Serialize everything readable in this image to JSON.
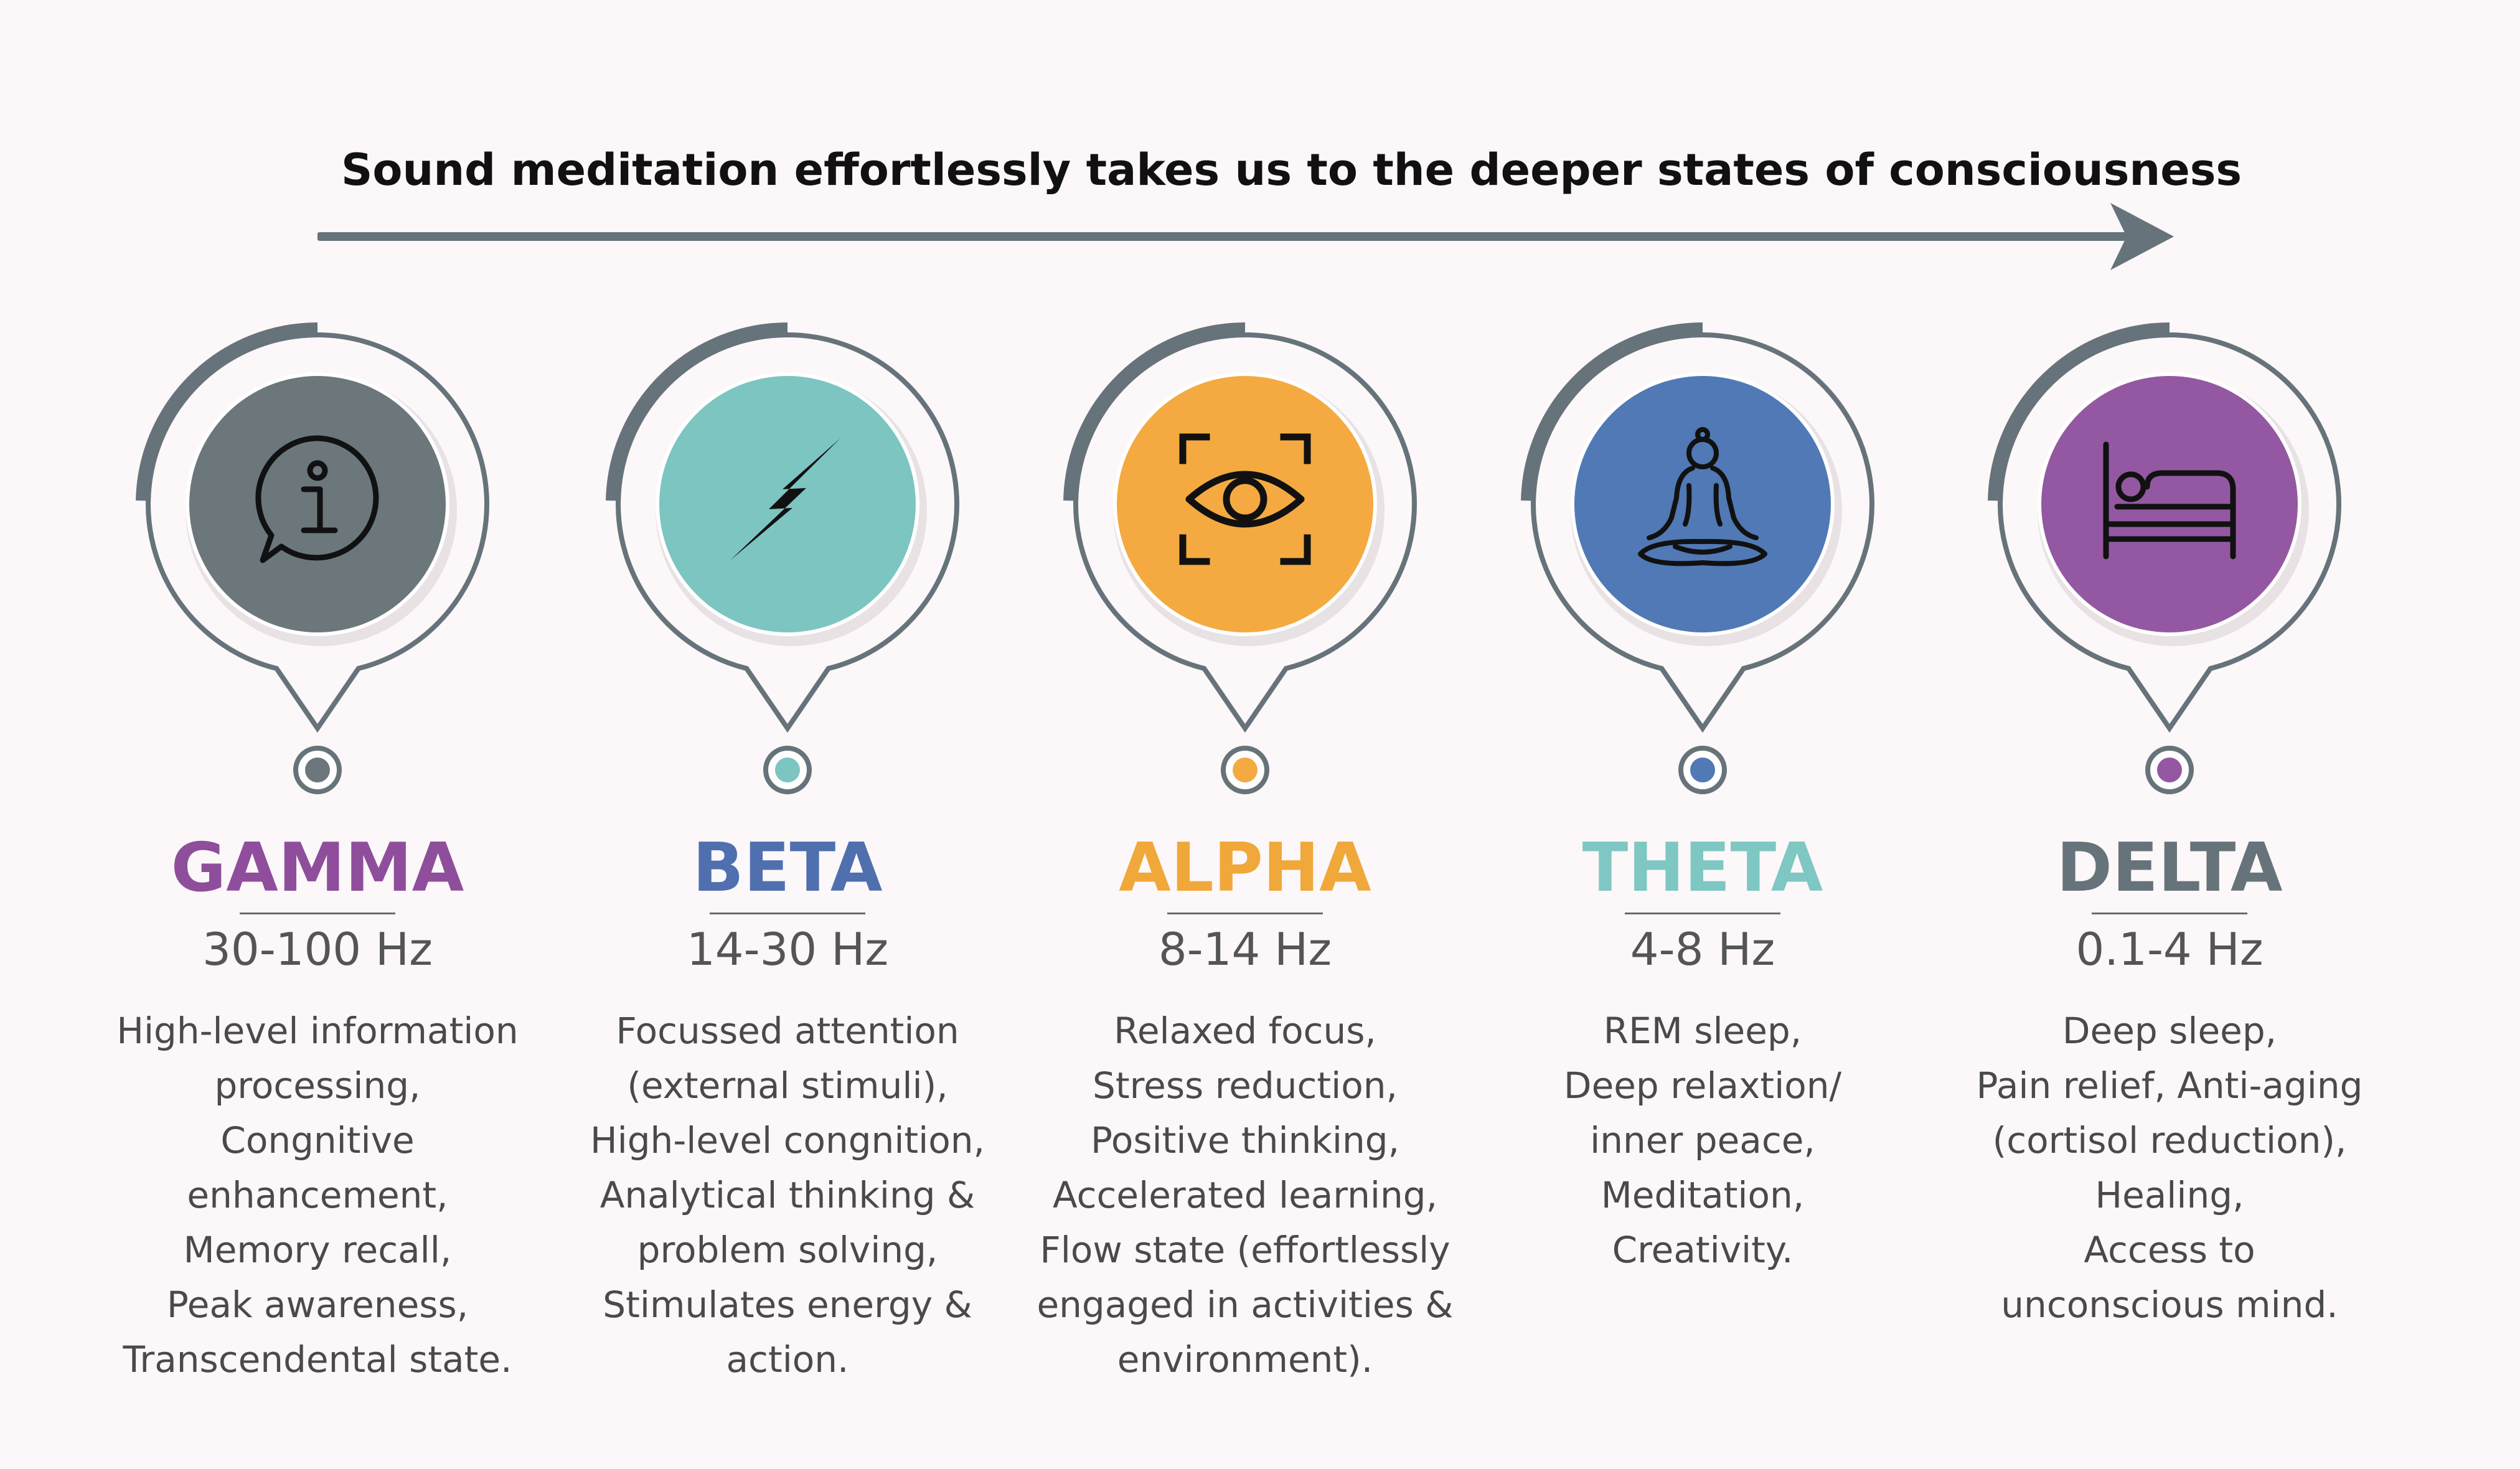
{
  "header": {
    "title": "Sound meditation effortlessly takes us to the deeper states of consciousness"
  },
  "colors": {
    "arrow": "#67737A",
    "ring": "#67737A",
    "background": "#FCF7F9"
  },
  "states": [
    {
      "name": "GAMMA",
      "frequency": "30-100 Hz",
      "name_color": "#8E4E9B",
      "circle_color": "#6C777C",
      "icon": "info-icon",
      "description": [
        "High-level information",
        "processing,",
        "Congnitive",
        "enhancement,",
        "Memory recall,",
        "Peak awareness,",
        "Transcendental state."
      ]
    },
    {
      "name": "BETA",
      "frequency": "14-30 Hz",
      "name_color": "#4F6FAF",
      "circle_color": "#7CC5C1",
      "icon": "lightning-icon",
      "description": [
        "Focussed attention",
        "(external stimuli),",
        "High-level congnition,",
        "Analytical thinking &",
        "problem solving,",
        "Stimulates energy &",
        "action."
      ]
    },
    {
      "name": "ALPHA",
      "frequency": "8-14 Hz",
      "name_color": "#F0A83A",
      "circle_color": "#F4AA40",
      "icon": "eye-focus-icon",
      "description": [
        "Relaxed focus,",
        "Stress reduction,",
        "Positive thinking,",
        "Accelerated learning,",
        "Flow state (effortlessly",
        "engaged  in activities &",
        "environment)."
      ]
    },
    {
      "name": "THETA",
      "frequency": "4-8 Hz",
      "name_color": "#7EC7C3",
      "circle_color": "#5079B5",
      "icon": "meditation-icon",
      "description": [
        "REM sleep,",
        "Deep relaxtion/",
        "inner peace,",
        "Meditation,",
        "Creativity."
      ]
    },
    {
      "name": "DELTA",
      "frequency": "0.1-4 Hz",
      "name_color": "#67737A",
      "circle_color": "#9458A2",
      "icon": "bed-icon",
      "description": [
        "Deep sleep,",
        "Pain relief, Anti-aging",
        "(cortisol reduction),",
        "Healing,",
        "Access to",
        "unconscious mind."
      ]
    }
  ]
}
